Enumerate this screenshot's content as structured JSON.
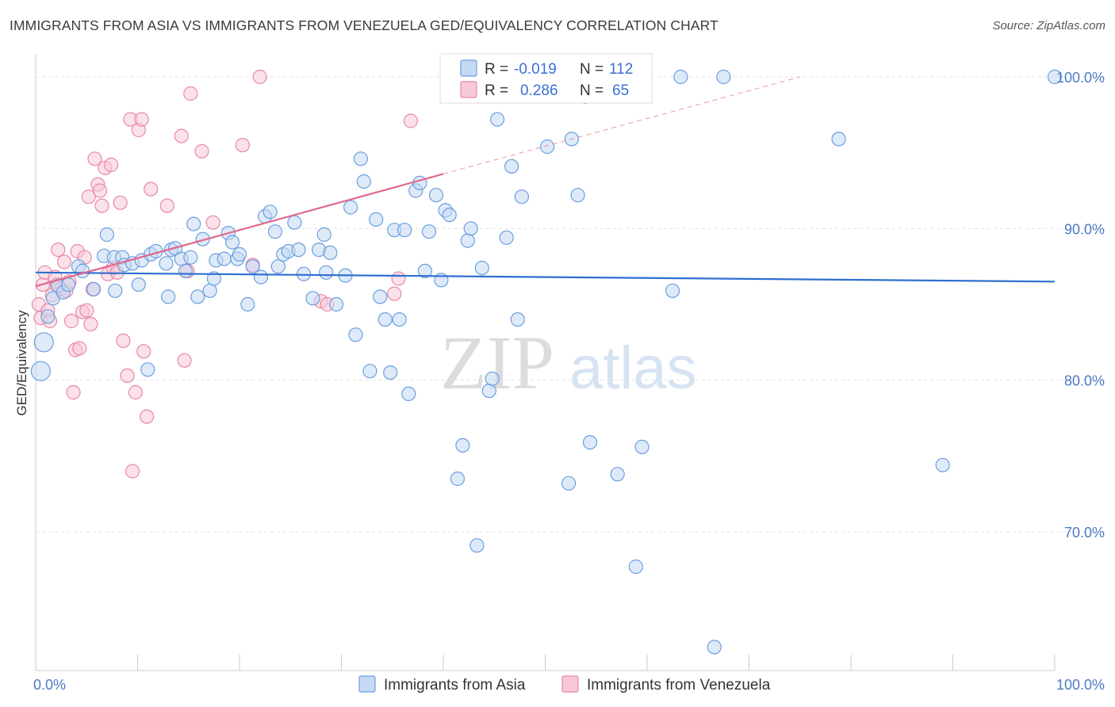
{
  "header": {
    "title": "IMMIGRANTS FROM ASIA VS IMMIGRANTS FROM VENEZUELA GED/EQUIVALENCY CORRELATION CHART",
    "source": "Source: ZipAtlas.com"
  },
  "watermark": {
    "zip": "ZIP",
    "atlas": "atlas"
  },
  "chart_data": {
    "type": "scatter",
    "ylabel": "GED/Equivalency",
    "xlim": [
      0,
      100
    ],
    "ylim": [
      60.5,
      103.5
    ],
    "x_tick_labels": [
      {
        "value": 0,
        "label": "0.0%"
      },
      {
        "value": 100,
        "label": "100.0%"
      }
    ],
    "y_ticks": [
      {
        "value": 70,
        "label": "70.0%"
      },
      {
        "value": 80,
        "label": "80.0%"
      },
      {
        "value": 90,
        "label": "90.0%"
      },
      {
        "value": 100,
        "label": "100.0%"
      }
    ],
    "grid": true,
    "legend_position": "top-center",
    "legend": [
      {
        "r_label": "R = ",
        "r_value": "-0.019",
        "n_label": "N = ",
        "n_value": "112"
      },
      {
        "r_label": "R = ",
        "r_value": "0.286",
        "n_label": "N = ",
        "n_value": "65"
      }
    ],
    "series": [
      {
        "name": "Immigrants from Asia",
        "color": "#6a9fe0",
        "fill": "#c5d9f3",
        "trend": {
          "x": [
            0,
            100
          ],
          "y": [
            87.1,
            86.5
          ],
          "color": "#2d6fd0"
        },
        "points": [
          [
            0.5,
            80.6
          ],
          [
            0.8,
            82.5
          ],
          [
            1.2,
            84.2
          ],
          [
            1.7,
            85.4
          ],
          [
            2.2,
            86.2
          ],
          [
            2.7,
            85.8
          ],
          [
            3.2,
            86.3
          ],
          [
            4.2,
            87.5
          ],
          [
            4.6,
            87.2
          ],
          [
            5.7,
            86.0
          ],
          [
            6.7,
            88.2
          ],
          [
            7.0,
            89.6
          ],
          [
            7.7,
            88.1
          ],
          [
            7.8,
            85.9
          ],
          [
            8.5,
            88.1
          ],
          [
            8.7,
            87.6
          ],
          [
            9.5,
            87.7
          ],
          [
            10.1,
            86.3
          ],
          [
            10.4,
            87.9
          ],
          [
            11.0,
            80.7
          ],
          [
            11.3,
            88.3
          ],
          [
            11.8,
            88.5
          ],
          [
            12.8,
            87.7
          ],
          [
            13.0,
            85.5
          ],
          [
            13.3,
            88.6
          ],
          [
            13.7,
            88.7
          ],
          [
            14.3,
            88.0
          ],
          [
            14.7,
            87.2
          ],
          [
            15.2,
            88.1
          ],
          [
            15.5,
            90.3
          ],
          [
            15.9,
            85.5
          ],
          [
            16.4,
            89.3
          ],
          [
            17.1,
            85.9
          ],
          [
            17.5,
            86.7
          ],
          [
            17.7,
            87.9
          ],
          [
            18.5,
            88.0
          ],
          [
            18.9,
            89.7
          ],
          [
            19.3,
            89.1
          ],
          [
            19.8,
            88.0
          ],
          [
            20.0,
            88.3
          ],
          [
            20.8,
            85.0
          ],
          [
            21.3,
            87.5
          ],
          [
            22.1,
            86.8
          ],
          [
            22.5,
            90.8
          ],
          [
            23.0,
            91.1
          ],
          [
            23.5,
            89.8
          ],
          [
            23.8,
            87.5
          ],
          [
            24.3,
            88.3
          ],
          [
            24.8,
            88.5
          ],
          [
            25.4,
            90.4
          ],
          [
            25.8,
            88.6
          ],
          [
            26.3,
            87.0
          ],
          [
            27.2,
            85.4
          ],
          [
            27.8,
            88.6
          ],
          [
            28.3,
            89.6
          ],
          [
            28.5,
            87.1
          ],
          [
            28.9,
            88.4
          ],
          [
            29.5,
            85.0
          ],
          [
            30.4,
            86.9
          ],
          [
            30.9,
            91.4
          ],
          [
            31.4,
            83.0
          ],
          [
            31.9,
            94.6
          ],
          [
            32.2,
            93.1
          ],
          [
            32.8,
            80.6
          ],
          [
            33.4,
            90.6
          ],
          [
            33.8,
            85.5
          ],
          [
            34.3,
            84.0
          ],
          [
            34.8,
            80.5
          ],
          [
            35.2,
            89.9
          ],
          [
            35.7,
            84.0
          ],
          [
            36.2,
            89.9
          ],
          [
            36.6,
            79.1
          ],
          [
            37.3,
            92.5
          ],
          [
            37.7,
            93.0
          ],
          [
            38.2,
            87.2
          ],
          [
            38.6,
            89.8
          ],
          [
            39.3,
            92.2
          ],
          [
            39.8,
            86.6
          ],
          [
            40.2,
            91.2
          ],
          [
            40.6,
            90.9
          ],
          [
            41.4,
            73.5
          ],
          [
            41.9,
            75.7
          ],
          [
            42.4,
            89.2
          ],
          [
            42.7,
            90.0
          ],
          [
            43.3,
            69.1
          ],
          [
            43.8,
            87.4
          ],
          [
            44.5,
            79.3
          ],
          [
            44.8,
            80.1
          ],
          [
            45.3,
            97.2
          ],
          [
            46.2,
            89.4
          ],
          [
            46.7,
            94.1
          ],
          [
            47.3,
            84.0
          ],
          [
            47.7,
            92.1
          ],
          [
            50.2,
            95.4
          ],
          [
            52.3,
            73.2
          ],
          [
            52.6,
            95.9
          ],
          [
            53.2,
            92.2
          ],
          [
            53.9,
            98.7
          ],
          [
            54.4,
            75.9
          ],
          [
            57.1,
            73.8
          ],
          [
            58.9,
            67.7
          ],
          [
            59.5,
            75.6
          ],
          [
            62.5,
            85.9
          ],
          [
            63.3,
            100.0
          ],
          [
            66.6,
            62.4
          ],
          [
            67.5,
            100.0
          ],
          [
            78.8,
            95.9
          ],
          [
            89.0,
            74.4
          ],
          [
            100.0,
            100.0
          ]
        ]
      },
      {
        "name": "Immigrants from Venezuela",
        "color": "#e888a8",
        "fill": "#f7c9d7",
        "trend": {
          "x": [
            0,
            40.0
          ],
          "y": [
            86.2,
            93.6
          ],
          "color": "#e0688f"
        },
        "trend_extension": {
          "x": [
            40.0,
            75.0
          ],
          "y": [
            93.6,
            100.0
          ]
        },
        "points": [
          [
            0.3,
            85.0
          ],
          [
            0.5,
            84.1
          ],
          [
            0.7,
            86.3
          ],
          [
            0.9,
            87.1
          ],
          [
            1.2,
            84.6
          ],
          [
            1.4,
            83.9
          ],
          [
            1.6,
            85.6
          ],
          [
            1.9,
            86.8
          ],
          [
            2.1,
            86.3
          ],
          [
            2.2,
            88.6
          ],
          [
            2.5,
            86.0
          ],
          [
            2.8,
            87.8
          ],
          [
            3.0,
            85.9
          ],
          [
            3.3,
            86.5
          ],
          [
            3.5,
            83.9
          ],
          [
            3.7,
            79.2
          ],
          [
            3.9,
            82.0
          ],
          [
            4.1,
            88.5
          ],
          [
            4.3,
            82.1
          ],
          [
            4.6,
            84.5
          ],
          [
            4.8,
            88.1
          ],
          [
            5.0,
            84.6
          ],
          [
            5.2,
            92.1
          ],
          [
            5.4,
            83.7
          ],
          [
            5.6,
            86.0
          ],
          [
            5.8,
            94.6
          ],
          [
            6.1,
            92.9
          ],
          [
            6.3,
            92.5
          ],
          [
            6.5,
            91.5
          ],
          [
            6.8,
            94.0
          ],
          [
            7.1,
            87.0
          ],
          [
            7.4,
            94.2
          ],
          [
            7.6,
            87.4
          ],
          [
            8.0,
            87.1
          ],
          [
            8.3,
            91.7
          ],
          [
            8.6,
            82.6
          ],
          [
            9.0,
            80.3
          ],
          [
            9.3,
            97.2
          ],
          [
            9.5,
            74.0
          ],
          [
            9.8,
            79.2
          ],
          [
            10.1,
            96.5
          ],
          [
            10.4,
            97.2
          ],
          [
            10.6,
            81.9
          ],
          [
            10.9,
            77.6
          ],
          [
            11.3,
            92.6
          ],
          [
            12.9,
            91.5
          ],
          [
            14.3,
            96.1
          ],
          [
            14.6,
            81.3
          ],
          [
            14.9,
            87.2
          ],
          [
            15.2,
            98.9
          ],
          [
            16.3,
            95.1
          ],
          [
            17.4,
            90.4
          ],
          [
            20.3,
            95.5
          ],
          [
            21.3,
            87.6
          ],
          [
            22.0,
            100.0
          ],
          [
            28.0,
            85.2
          ],
          [
            28.6,
            85.0
          ],
          [
            35.2,
            85.7
          ],
          [
            35.6,
            86.7
          ],
          [
            36.8,
            97.1
          ]
        ]
      }
    ]
  }
}
